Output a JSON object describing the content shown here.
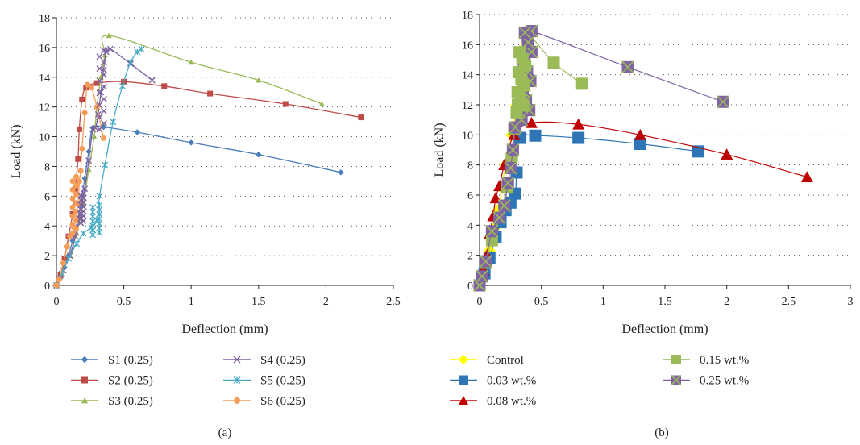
{
  "chart_data": [
    {
      "id": "a",
      "type": "line",
      "caption": "(a)",
      "xlabel": "Deflection (mm)",
      "ylabel": "Load (kN)",
      "xlim": [
        0,
        2.5
      ],
      "ylim": [
        0,
        18
      ],
      "xticks": [
        "0",
        "0.5",
        "1",
        "1.5",
        "2",
        "2.5"
      ],
      "yticks": [
        "0",
        "2",
        "4",
        "6",
        "8",
        "10",
        "12",
        "14",
        "16",
        "18"
      ],
      "grid": "dotted horizontal",
      "legend_position": "bottom",
      "series": [
        {
          "name": "S1 (0.25)",
          "color": "#4a7ebb",
          "marker": "diamond",
          "points": [
            [
              0,
              0
            ],
            [
              0.03,
              0.5
            ],
            [
              0.06,
              1.2
            ],
            [
              0.09,
              2
            ],
            [
              0.12,
              3
            ],
            [
              0.16,
              4.5
            ],
            [
              0.19,
              6
            ],
            [
              0.21,
              7.2
            ],
            [
              0.24,
              9
            ],
            [
              0.27,
              10.6
            ],
            [
              0.35,
              10.65
            ],
            [
              0.6,
              10.3
            ],
            [
              1.0,
              9.6
            ],
            [
              1.5,
              8.8
            ],
            [
              2.11,
              7.6
            ]
          ]
        },
        {
          "name": "S2 (0.25)",
          "color": "#be4b48",
          "marker": "square",
          "points": [
            [
              0,
              0
            ],
            [
              0.03,
              0.7
            ],
            [
              0.06,
              1.8
            ],
            [
              0.09,
              3.3
            ],
            [
              0.12,
              4.8
            ],
            [
              0.14,
              6.5
            ],
            [
              0.16,
              8.5
            ],
            [
              0.17,
              10.5
            ],
            [
              0.19,
              12.5
            ],
            [
              0.22,
              13.3
            ],
            [
              0.3,
              13.6
            ],
            [
              0.5,
              13.7
            ],
            [
              0.8,
              13.4
            ],
            [
              1.14,
              12.9
            ],
            [
              1.7,
              12.2
            ],
            [
              2.26,
              11.3
            ]
          ]
        },
        {
          "name": "S3 (0.25)",
          "color": "#98b954",
          "marker": "triangle",
          "points": [
            [
              0,
              0
            ],
            [
              0.05,
              1
            ],
            [
              0.1,
              2
            ],
            [
              0.15,
              3.5
            ],
            [
              0.2,
              5.5
            ],
            [
              0.24,
              7.8
            ],
            [
              0.28,
              10
            ],
            [
              0.3,
              12
            ],
            [
              0.33,
              14
            ],
            [
              0.36,
              15.5
            ],
            [
              0.39,
              16.8
            ],
            [
              1.0,
              15.0
            ],
            [
              1.5,
              13.8
            ],
            [
              1.97,
              12.2
            ]
          ]
        },
        {
          "name": "S4 (0.25)",
          "color": "#7d60a0",
          "marker": "x",
          "points": [
            [
              0,
              0
            ],
            [
              0.05,
              1
            ],
            [
              0.1,
              2
            ],
            [
              0.14,
              3.3
            ],
            [
              0.17,
              4.5
            ],
            [
              0.19,
              5.5
            ],
            [
              0.21,
              6.5
            ],
            [
              0.24,
              8.4
            ],
            [
              0.27,
              10.5
            ],
            [
              0.29,
              10.6
            ],
            [
              0.31,
              11.5
            ],
            [
              0.33,
              13
            ],
            [
              0.35,
              14.5
            ],
            [
              0.37,
              15.7
            ],
            [
              0.4,
              15.9
            ],
            [
              0.55,
              14.9
            ],
            [
              0.71,
              13.8
            ]
          ]
        },
        {
          "name": "S5 (0.25)",
          "color": "#4bacc6",
          "marker": "asterisk",
          "points": [
            [
              0,
              0
            ],
            [
              0.04,
              0.8
            ],
            [
              0.09,
              1.8
            ],
            [
              0.15,
              2.8
            ],
            [
              0.2,
              3.5
            ],
            [
              0.26,
              3.9
            ],
            [
              0.3,
              4.4
            ],
            [
              0.32,
              6
            ],
            [
              0.36,
              8.1
            ],
            [
              0.42,
              11
            ],
            [
              0.49,
              13.4
            ],
            [
              0.55,
              15
            ],
            [
              0.6,
              15.7
            ],
            [
              0.63,
              15.9
            ]
          ]
        },
        {
          "name": "S6 (0.25)",
          "color": "#f59d56",
          "marker": "circle",
          "points": [
            [
              0,
              0
            ],
            [
              0.02,
              0.4
            ],
            [
              0.05,
              1.5
            ],
            [
              0.08,
              2.6
            ],
            [
              0.1,
              3.3
            ],
            [
              0.13,
              3.9
            ],
            [
              0.16,
              5.5
            ],
            [
              0.17,
              7
            ],
            [
              0.18,
              7.7
            ],
            [
              0.19,
              9.2
            ],
            [
              0.21,
              11.6
            ],
            [
              0.23,
              13.5
            ],
            [
              0.26,
              13.3
            ],
            [
              0.3,
              12
            ],
            [
              0.35,
              9.9
            ]
          ]
        }
      ],
      "clusters": [
        {
          "series": "S5 (0.25)",
          "x": [
            0.27,
            0.36
          ],
          "y": [
            3.4,
            5.4
          ]
        },
        {
          "series": "S6 (0.25)",
          "x": [
            0.12,
            0.17
          ],
          "y": [
            3.5,
            7.3
          ]
        },
        {
          "series": "S4 (0.25)",
          "x": [
            0.18,
            0.22
          ],
          "y": [
            4.2,
            6.2
          ]
        },
        {
          "series": "S4 (0.25)",
          "x": [
            0.32,
            0.38
          ],
          "y": [
            10.5,
            15.8
          ]
        }
      ]
    },
    {
      "id": "b",
      "type": "line",
      "caption": "(b)",
      "xlabel": "Deflection (mm)",
      "ylabel": "Load (kN)",
      "xlim": [
        0,
        3
      ],
      "ylim": [
        0,
        18
      ],
      "xticks": [
        "0",
        "0.5",
        "1",
        "1.5",
        "2",
        "2.5",
        "3"
      ],
      "yticks": [
        "0",
        "2",
        "4",
        "6",
        "8",
        "10",
        "12",
        "14",
        "16",
        "18"
      ],
      "grid": "dotted horizontal",
      "legend_position": "bottom",
      "series": [
        {
          "name": "Control",
          "color": "#ffff00",
          "marker": "diamond",
          "points": [
            [
              0,
              0
            ],
            [
              0.04,
              1
            ],
            [
              0.08,
              2.3
            ],
            [
              0.12,
              3.8
            ],
            [
              0.15,
              5
            ],
            [
              0.18,
              6.5
            ],
            [
              0.21,
              8
            ],
            [
              0.26,
              10
            ],
            [
              0.3,
              12
            ],
            [
              0.34,
              14
            ],
            [
              0.38,
              16
            ],
            [
              0.4,
              16.8
            ]
          ]
        },
        {
          "name": "0.03 wt.%",
          "color": "#2e75b6",
          "marker": "square",
          "points": [
            [
              0,
              0
            ],
            [
              0.04,
              0.8
            ],
            [
              0.08,
              1.8
            ],
            [
              0.13,
              3.2
            ],
            [
              0.17,
              4.2
            ],
            [
              0.21,
              5
            ],
            [
              0.25,
              5.5
            ],
            [
              0.29,
              6.1
            ],
            [
              0.3,
              7.5
            ],
            [
              0.33,
              9.8
            ],
            [
              0.45,
              9.95
            ],
            [
              0.8,
              9.8
            ],
            [
              1.3,
              9.4
            ],
            [
              1.77,
              8.9
            ]
          ]
        },
        {
          "name": "0.08 wt.%",
          "color": "#c00000",
          "marker": "triangle",
          "points": [
            [
              0,
              0
            ],
            [
              0.03,
              1
            ],
            [
              0.06,
              2
            ],
            [
              0.08,
              3.4
            ],
            [
              0.11,
              4.6
            ],
            [
              0.13,
              5.8
            ],
            [
              0.16,
              6.6
            ],
            [
              0.2,
              8
            ],
            [
              0.28,
              10
            ],
            [
              0.42,
              10.8
            ],
            [
              0.8,
              10.7
            ],
            [
              1.3,
              10
            ],
            [
              2,
              8.7
            ],
            [
              2.65,
              7.2
            ]
          ]
        },
        {
          "name": "0.15 wt.%",
          "color": "#9bbb59",
          "marker": "square",
          "points": [
            [
              0,
              0
            ],
            [
              0.05,
              1.5
            ],
            [
              0.1,
              3
            ],
            [
              0.16,
              4.5
            ],
            [
              0.22,
              6.5
            ],
            [
              0.26,
              8.5
            ],
            [
              0.28,
              10.4
            ],
            [
              0.31,
              12
            ],
            [
              0.34,
              14
            ],
            [
              0.36,
              15.5
            ],
            [
              0.39,
              16.7
            ],
            [
              0.6,
              14.8
            ],
            [
              0.83,
              13.4
            ]
          ]
        },
        {
          "name": "0.25 wt.%",
          "color": "#8064a2",
          "marker": "square-x",
          "points": [
            [
              0,
              0
            ],
            [
              0.02,
              0.6
            ],
            [
              0.05,
              1.6
            ],
            [
              0.1,
              3.6
            ],
            [
              0.16,
              4.5
            ],
            [
              0.2,
              5.3
            ],
            [
              0.23,
              6.8
            ],
            [
              0.25,
              7.8
            ],
            [
              0.27,
              9
            ],
            [
              0.29,
              10.5
            ],
            [
              0.31,
              11.5
            ],
            [
              0.33,
              12.8
            ],
            [
              0.35,
              14
            ],
            [
              0.37,
              15.5
            ],
            [
              0.39,
              16.5
            ],
            [
              0.42,
              16.9
            ],
            [
              1.2,
              14.5
            ],
            [
              1.97,
              12.2
            ]
          ]
        }
      ],
      "clusters": [
        {
          "series": "0.25 wt.%",
          "x": [
            0.34,
            0.42
          ],
          "y": [
            11,
            16.8
          ]
        },
        {
          "series": "0.15 wt.%",
          "x": [
            0.3,
            0.37
          ],
          "y": [
            11.5,
            15.5
          ]
        }
      ]
    }
  ]
}
